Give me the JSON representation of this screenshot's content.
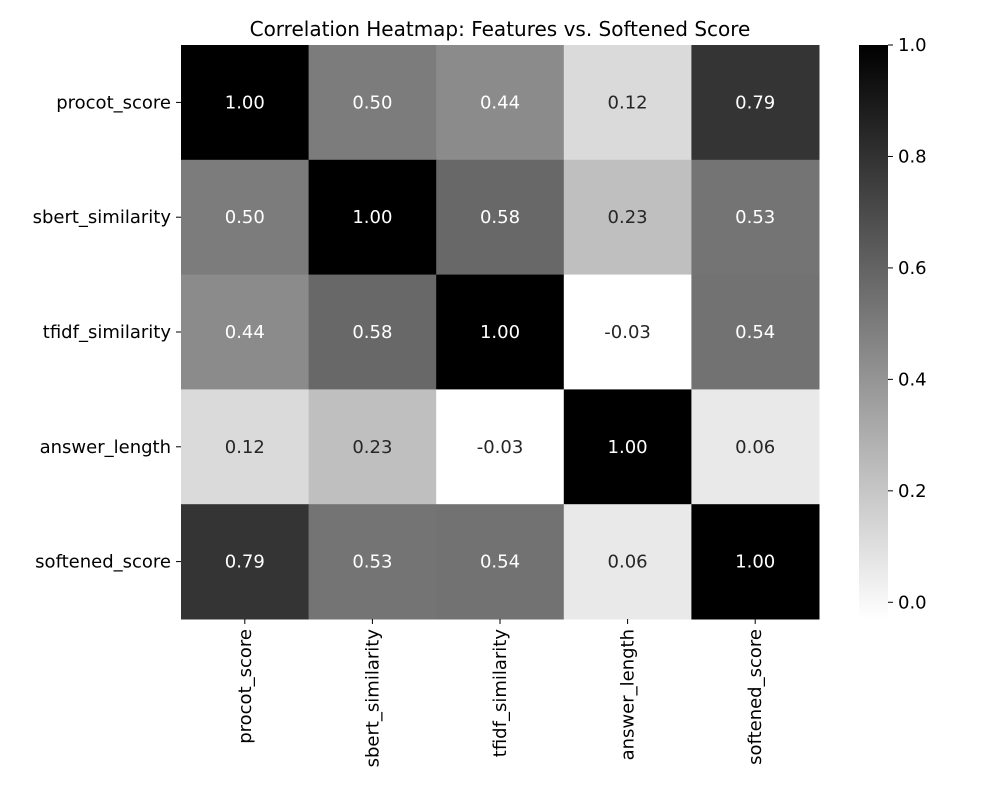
{
  "chart_data": {
    "type": "heatmap",
    "title": "Correlation Heatmap: Features vs. Softened Score",
    "x_categories": [
      "procot_score",
      "sbert_similarity",
      "tfidf_similarity",
      "answer_length",
      "softened_score"
    ],
    "y_categories": [
      "procot_score",
      "sbert_similarity",
      "tfidf_similarity",
      "answer_length",
      "softened_score"
    ],
    "values": [
      [
        1.0,
        0.5,
        0.44,
        0.12,
        0.79
      ],
      [
        0.5,
        1.0,
        0.58,
        0.23,
        0.53
      ],
      [
        0.44,
        0.58,
        1.0,
        -0.03,
        0.54
      ],
      [
        0.12,
        0.23,
        -0.03,
        1.0,
        0.06
      ],
      [
        0.79,
        0.53,
        0.54,
        0.06,
        1.0
      ]
    ],
    "value_format": "0.00",
    "colormap": "greys",
    "color_range": [
      -0.03,
      1.0
    ],
    "colorbar_ticks": [
      "0.0",
      "0.2",
      "0.4",
      "0.6",
      "0.8",
      "1.0"
    ],
    "colorbar_tick_values": [
      0.0,
      0.2,
      0.4,
      0.6,
      0.8,
      1.0
    ],
    "colors": {
      "low": "#ffffff",
      "high": "#000000",
      "text_dark": "#262626",
      "text_light": "#ffffff"
    }
  }
}
